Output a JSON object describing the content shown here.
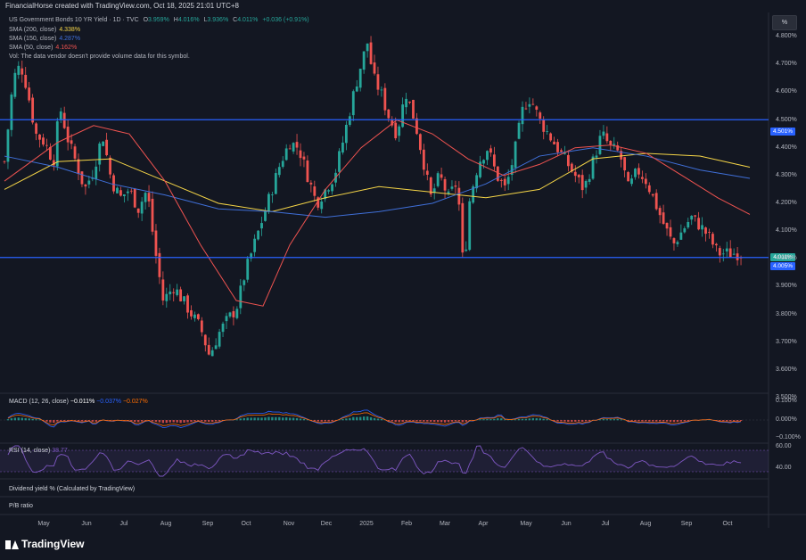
{
  "header": {
    "credit": "FinancialHorse created with TradingView.com, Oct 18, 2025 21:01 UTC+8"
  },
  "legend": {
    "symbol": "US Government Bonds 10 YR Yield · 1D · TVC",
    "ohlc": {
      "o_label": "O",
      "o": "3.959%",
      "h_label": "H",
      "h": "4.016%",
      "l_label": "L",
      "l": "3.936%",
      "c_label": "C",
      "c": "4.011%",
      "change": "+0.036 (+0.91%)"
    },
    "sma200": {
      "label": "SMA (200, close)",
      "value": "4.338%",
      "color": "#f5d547"
    },
    "sma150": {
      "label": "SMA (150, close)",
      "value": "4.287%",
      "color": "#3f6fd8"
    },
    "sma50": {
      "label": "SMA (50, close)",
      "value": "4.162%",
      "color": "#ef5350"
    },
    "vol": "Vol: The data vendor doesn't provide volume data for this symbol."
  },
  "percent_button": "%",
  "panes": {
    "macd": {
      "label": "MACD (12, 26, close)",
      "v1": "−0.011%",
      "v2": "−0.037%",
      "v3": "−0.027%",
      "ticks": [
        "0.100%",
        "0.000%",
        "−0.100%"
      ]
    },
    "rsi": {
      "label": "RSI (14, close)",
      "value": "38.77",
      "ticks": [
        "60.00",
        "40.00"
      ]
    },
    "dividend": {
      "label": "Dividend yield % (Calculated by TradingView)"
    },
    "pe": {
      "label": "P/B ratio"
    }
  },
  "price_tags": {
    "upper": "4.501%",
    "current": "4.011%",
    "lower": "4.005%"
  },
  "colors": {
    "up": "#26a69a",
    "down": "#ef5350",
    "hline": "#2962ff",
    "bg": "#131722",
    "rsi": "#7e57c2"
  },
  "brand": "TradingView",
  "chart_data": {
    "type": "candlestick",
    "title": "US Government Bonds 10 YR Yield · 1D · TVC",
    "ylim": [
      3.5,
      4.9
    ],
    "yticks": [
      "4.800%",
      "4.700%",
      "4.600%",
      "4.500%",
      "4.400%",
      "4.300%",
      "4.200%",
      "4.100%",
      "4.000%",
      "3.900%",
      "3.800%",
      "3.700%",
      "3.600%",
      "3.500%"
    ],
    "x_labels": [
      "May",
      "Jun",
      "Jul",
      "Aug",
      "Sep",
      "Oct",
      "Nov",
      "Dec",
      "2025",
      "Feb",
      "Mar",
      "Apr",
      "May",
      "Jun",
      "Jul",
      "Aug",
      "Sep",
      "Oct"
    ],
    "horizontal_lines": [
      4.501,
      4.005
    ],
    "path": [
      [
        0,
        4.35
      ],
      [
        10,
        4.65
      ],
      [
        18,
        4.7
      ],
      [
        25,
        4.62
      ],
      [
        35,
        4.45
      ],
      [
        45,
        4.42
      ],
      [
        55,
        4.35
      ],
      [
        62,
        4.55
      ],
      [
        72,
        4.42
      ],
      [
        80,
        4.35
      ],
      [
        90,
        4.25
      ],
      [
        100,
        4.32
      ],
      [
        110,
        4.45
      ],
      [
        120,
        4.28
      ],
      [
        130,
        4.22
      ],
      [
        140,
        4.25
      ],
      [
        150,
        4.18
      ],
      [
        160,
        4.25
      ],
      [
        168,
        4.05
      ],
      [
        178,
        3.85
      ],
      [
        190,
        3.9
      ],
      [
        200,
        3.85
      ],
      [
        210,
        3.8
      ],
      [
        220,
        3.75
      ],
      [
        230,
        3.65
      ],
      [
        240,
        3.73
      ],
      [
        250,
        3.78
      ],
      [
        260,
        3.82
      ],
      [
        270,
        3.95
      ],
      [
        280,
        4.05
      ],
      [
        290,
        4.15
      ],
      [
        300,
        4.25
      ],
      [
        310,
        4.35
      ],
      [
        320,
        4.42
      ],
      [
        330,
        4.4
      ],
      [
        340,
        4.3
      ],
      [
        350,
        4.2
      ],
      [
        360,
        4.25
      ],
      [
        370,
        4.3
      ],
      [
        378,
        4.4
      ],
      [
        385,
        4.5
      ],
      [
        392,
        4.6
      ],
      [
        400,
        4.7
      ],
      [
        407,
        4.78
      ],
      [
        414,
        4.65
      ],
      [
        422,
        4.6
      ],
      [
        430,
        4.52
      ],
      [
        440,
        4.45
      ],
      [
        450,
        4.6
      ],
      [
        460,
        4.5
      ],
      [
        470,
        4.35
      ],
      [
        478,
        4.22
      ],
      [
        488,
        4.3
      ],
      [
        498,
        4.22
      ],
      [
        508,
        4.28
      ],
      [
        515,
        3.95
      ],
      [
        522,
        4.22
      ],
      [
        532,
        4.35
      ],
      [
        542,
        4.4
      ],
      [
        552,
        4.3
      ],
      [
        562,
        4.25
      ],
      [
        572,
        4.38
      ],
      [
        582,
        4.55
      ],
      [
        590,
        4.58
      ],
      [
        600,
        4.5
      ],
      [
        610,
        4.45
      ],
      [
        620,
        4.4
      ],
      [
        630,
        4.35
      ],
      [
        640,
        4.3
      ],
      [
        650,
        4.25
      ],
      [
        660,
        4.35
      ],
      [
        670,
        4.45
      ],
      [
        680,
        4.4
      ],
      [
        690,
        4.38
      ],
      [
        700,
        4.25
      ],
      [
        710,
        4.32
      ],
      [
        720,
        4.28
      ],
      [
        730,
        4.2
      ],
      [
        740,
        4.12
      ],
      [
        750,
        4.05
      ],
      [
        760,
        4.1
      ],
      [
        770,
        4.15
      ],
      [
        780,
        4.12
      ],
      [
        790,
        4.08
      ],
      [
        800,
        4.02
      ]
    ],
    "sma200": [
      [
        0,
        4.25
      ],
      [
        60,
        4.35
      ],
      [
        120,
        4.36
      ],
      [
        180,
        4.28
      ],
      [
        240,
        4.2
      ],
      [
        300,
        4.17
      ],
      [
        360,
        4.22
      ],
      [
        420,
        4.26
      ],
      [
        480,
        4.24
      ],
      [
        540,
        4.22
      ],
      [
        600,
        4.25
      ],
      [
        660,
        4.36
      ],
      [
        720,
        4.38
      ],
      [
        780,
        4.37
      ],
      [
        836,
        4.33
      ]
    ],
    "sma150": [
      [
        0,
        4.37
      ],
      [
        60,
        4.33
      ],
      [
        120,
        4.27
      ],
      [
        180,
        4.23
      ],
      [
        240,
        4.18
      ],
      [
        300,
        4.17
      ],
      [
        360,
        4.15
      ],
      [
        420,
        4.17
      ],
      [
        480,
        4.2
      ],
      [
        540,
        4.27
      ],
      [
        600,
        4.37
      ],
      [
        660,
        4.4
      ],
      [
        720,
        4.37
      ],
      [
        780,
        4.32
      ],
      [
        836,
        4.29
      ]
    ],
    "sma50": [
      [
        0,
        4.28
      ],
      [
        60,
        4.42
      ],
      [
        100,
        4.48
      ],
      [
        140,
        4.45
      ],
      [
        180,
        4.28
      ],
      [
        220,
        4.05
      ],
      [
        260,
        3.85
      ],
      [
        290,
        3.83
      ],
      [
        320,
        4.05
      ],
      [
        360,
        4.25
      ],
      [
        400,
        4.4
      ],
      [
        440,
        4.5
      ],
      [
        480,
        4.45
      ],
      [
        520,
        4.36
      ],
      [
        560,
        4.3
      ],
      [
        600,
        4.34
      ],
      [
        640,
        4.4
      ],
      [
        680,
        4.41
      ],
      [
        720,
        4.38
      ],
      [
        760,
        4.3
      ],
      [
        800,
        4.22
      ],
      [
        836,
        4.16
      ]
    ]
  }
}
